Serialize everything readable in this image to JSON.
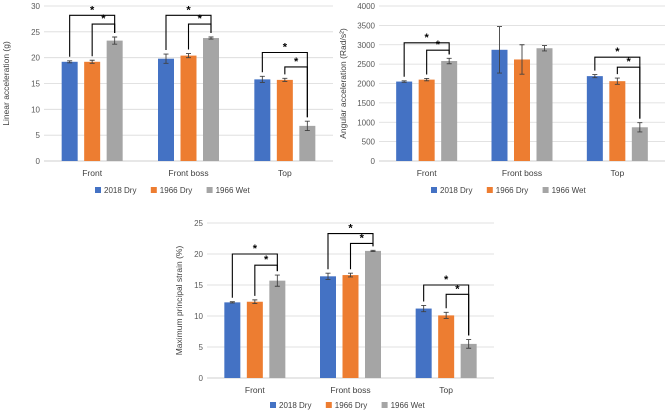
{
  "chart_data": [
    {
      "type": "bar",
      "ylabel": "Linear acceleration (g)",
      "ylim": [
        0,
        30
      ],
      "yticks": [
        0,
        5,
        10,
        15,
        20,
        25,
        30
      ],
      "categories": [
        "Front",
        "Front boss",
        "Top"
      ],
      "series": [
        {
          "name": "2018 Dry",
          "values": [
            19.2,
            19.8,
            15.8
          ],
          "errors": [
            0.2,
            0.9,
            0.6
          ]
        },
        {
          "name": "1966 Dry",
          "values": [
            19.2,
            20.4,
            15.7
          ],
          "errors": [
            0.3,
            0.4,
            0.3
          ]
        },
        {
          "name": "1966 Wet",
          "values": [
            23.3,
            23.8,
            6.8
          ],
          "errors": [
            0.7,
            0.2,
            0.9
          ]
        }
      ],
      "annotations": [
        {
          "label": "*",
          "category": "Front",
          "from_series": 0,
          "to_series": 2,
          "level": 28.2
        },
        {
          "label": "*",
          "category": "Front",
          "from_series": 1,
          "to_series": 2,
          "level": 26.5
        },
        {
          "label": "*",
          "category": "Front boss",
          "from_series": 0,
          "to_series": 2,
          "level": 28.2
        },
        {
          "label": "*",
          "category": "Front boss",
          "from_series": 1,
          "to_series": 2,
          "level": 26.5
        },
        {
          "label": "*",
          "category": "Top",
          "from_series": 0,
          "to_series": 2,
          "level": 21.0
        },
        {
          "label": "*",
          "category": "Top",
          "from_series": 1,
          "to_series": 2,
          "level": 18.2
        }
      ]
    },
    {
      "type": "bar",
      "ylabel": "Angular acceleration (Rad/s²)",
      "ylim": [
        0,
        4000
      ],
      "yticks": [
        0,
        500,
        1000,
        1500,
        2000,
        2500,
        3000,
        3500,
        4000
      ],
      "categories": [
        "Front",
        "Front boss",
        "Top"
      ],
      "series": [
        {
          "name": "2018 Dry",
          "values": [
            2050,
            2870,
            2190
          ],
          "errors": [
            20,
            600,
            40
          ]
        },
        {
          "name": "1966 Dry",
          "values": [
            2100,
            2620,
            2060
          ],
          "errors": [
            30,
            380,
            80
          ]
        },
        {
          "name": "1966 Wet",
          "values": [
            2580,
            2910,
            870
          ],
          "errors": [
            70,
            70,
            120
          ]
        }
      ],
      "annotations": [
        {
          "label": "*",
          "category": "Front",
          "from_series": 0,
          "to_series": 2,
          "level": 3050
        },
        {
          "label": "*",
          "category": "Front",
          "from_series": 1,
          "to_series": 2,
          "level": 2860
        },
        {
          "label": "*",
          "category": "Top",
          "from_series": 0,
          "to_series": 2,
          "level": 2680
        },
        {
          "label": "*",
          "category": "Top",
          "from_series": 1,
          "to_series": 2,
          "level": 2420
        }
      ]
    },
    {
      "type": "bar",
      "ylabel": "Maximum principal strain (%)",
      "ylim": [
        0,
        25
      ],
      "yticks": [
        0,
        5,
        10,
        15,
        20,
        25
      ],
      "categories": [
        "Front",
        "Front boss",
        "Top"
      ],
      "series": [
        {
          "name": "2018 Dry",
          "values": [
            12.2,
            16.4,
            11.2
          ],
          "errors": [
            0.1,
            0.5,
            0.5
          ]
        },
        {
          "name": "1966 Dry",
          "values": [
            12.3,
            16.6,
            10.1
          ],
          "errors": [
            0.3,
            0.3,
            0.5
          ]
        },
        {
          "name": "1966 Wet",
          "values": [
            15.7,
            20.5,
            5.5
          ],
          "errors": [
            0.9,
            0.1,
            0.7
          ]
        }
      ],
      "annotations": [
        {
          "label": "*",
          "category": "Front",
          "from_series": 0,
          "to_series": 2,
          "level": 20.0
        },
        {
          "label": "*",
          "category": "Front",
          "from_series": 1,
          "to_series": 2,
          "level": 18.2
        },
        {
          "label": "*",
          "category": "Front boss",
          "from_series": 0,
          "to_series": 2,
          "level": 23.3
        },
        {
          "label": "*",
          "category": "Front boss",
          "from_series": 1,
          "to_series": 2,
          "level": 21.7
        },
        {
          "label": "*",
          "category": "Top",
          "from_series": 0,
          "to_series": 2,
          "level": 15.0
        },
        {
          "label": "*",
          "category": "Top",
          "from_series": 1,
          "to_series": 2,
          "level": 13.5
        }
      ]
    }
  ],
  "colors": {
    "2018 Dry": "#4472c4",
    "1966 Dry": "#ed7d31",
    "1966 Wet": "#a5a5a5"
  }
}
